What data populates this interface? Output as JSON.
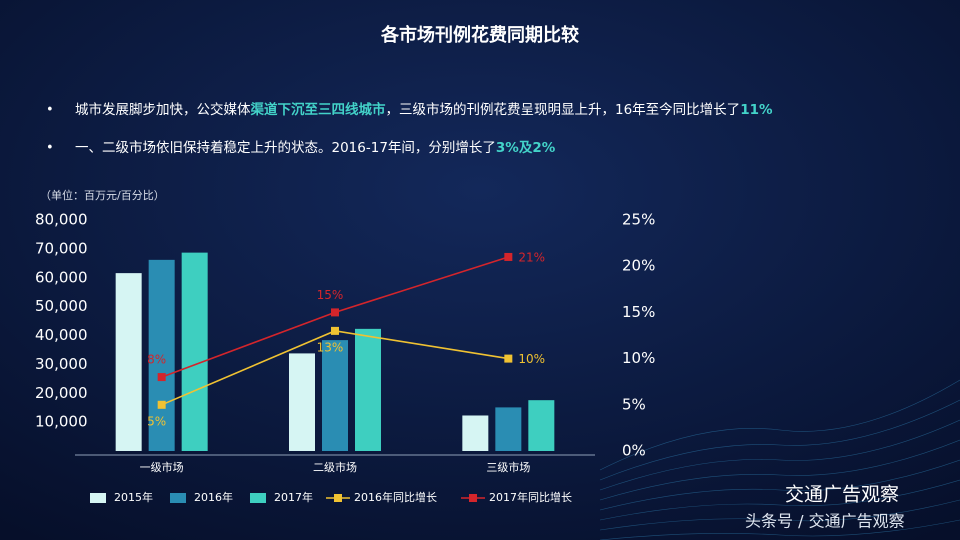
{
  "chart_data": {
    "type": "bar",
    "title": "各市场刊例花费同期比较",
    "bullets": [
      [
        {
          "text": "城市发展脚步加快，公交媒体",
          "highlight": false
        },
        {
          "text": "渠道下沉至三四线城市",
          "highlight": true
        },
        {
          "text": "，三级市场的刊例花费呈现明显上升，16年至今同比增长了",
          "highlight": false
        },
        {
          "text": "11%",
          "highlight": true
        }
      ],
      [
        {
          "text": "一、二级市场依旧保持着稳定上升的状态。2016-17年间，分别增长了",
          "highlight": false
        },
        {
          "text": "3%及2%",
          "highlight": true
        }
      ]
    ],
    "unit_label": "（单位：百万元/百分比）",
    "categories": [
      "一级市场",
      "二级市场",
      "三级市场"
    ],
    "series": [
      {
        "name": "2015年",
        "type": "bar",
        "color": "#d6f5f3",
        "values": [
          61600,
          33800,
          12300
        ]
      },
      {
        "name": "2016年",
        "type": "bar",
        "color": "#2a8db3",
        "values": [
          66200,
          38400,
          15100
        ]
      },
      {
        "name": "2017年",
        "type": "bar",
        "color": "#3ecfc0",
        "values": [
          68700,
          42300,
          17600
        ]
      },
      {
        "name": "2016年同比增长",
        "type": "line",
        "axis": "y2",
        "color": "#f0c232",
        "values": [
          5,
          13,
          10
        ],
        "value_labels": [
          "5%",
          "13%",
          "10%"
        ]
      },
      {
        "name": "2017年同比增长",
        "type": "line",
        "axis": "y2",
        "color": "#d4252b",
        "values": [
          8,
          15,
          21
        ],
        "value_labels": [
          "8%",
          "15%",
          "21%"
        ]
      }
    ],
    "ylim": [
      0,
      80000
    ],
    "yticks": [
      {
        "value": 10000,
        "label": "10,000"
      },
      {
        "value": 20000,
        "label": "20,000"
      },
      {
        "value": 30000,
        "label": "30,000"
      },
      {
        "value": 40000,
        "label": "40,000"
      },
      {
        "value": 50000,
        "label": "50,000"
      },
      {
        "value": 60000,
        "label": "60,000"
      },
      {
        "value": 70000,
        "label": "70,000"
      },
      {
        "value": 80000,
        "label": "80,000"
      }
    ],
    "y2lim": [
      0,
      25
    ],
    "y2ticks": [
      {
        "value": 0,
        "label": "0%"
      },
      {
        "value": 5,
        "label": "5%"
      },
      {
        "value": 10,
        "label": "10%"
      },
      {
        "value": 15,
        "label": "15%"
      },
      {
        "value": 20,
        "label": "20%"
      },
      {
        "value": 25,
        "label": "25%"
      }
    ],
    "watermark": [
      "交通广告观察",
      "头条号 / 交通广告观察"
    ]
  }
}
